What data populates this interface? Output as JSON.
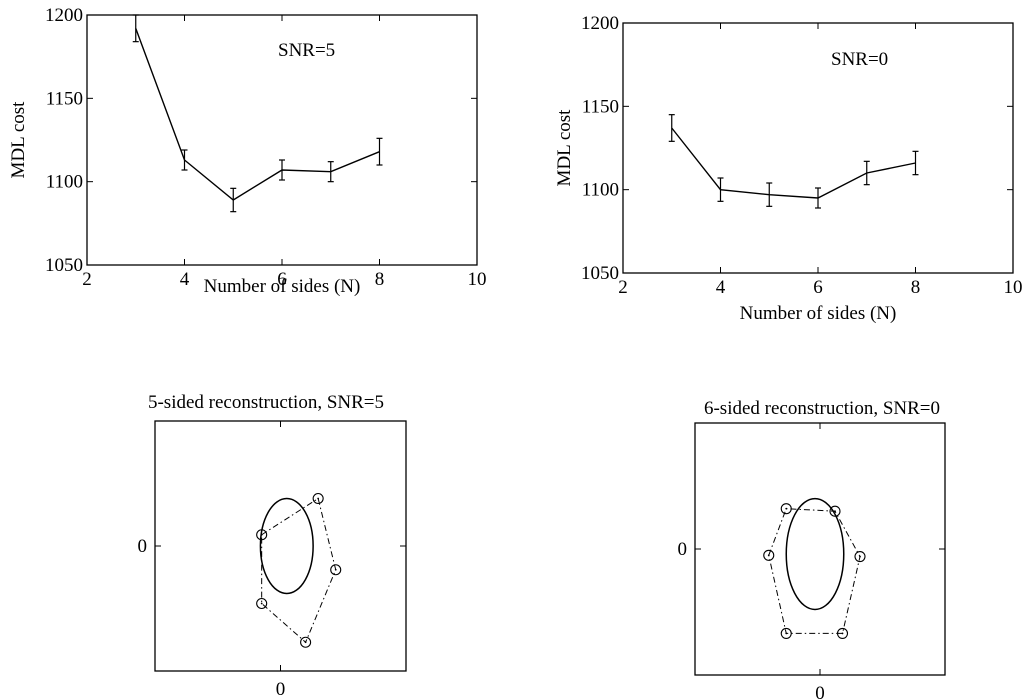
{
  "chart_data": [
    {
      "type": "line",
      "title": "",
      "annotation": "SNR=5",
      "xlabel": "Number of sides (N)",
      "ylabel": "MDL cost",
      "xlim": [
        2,
        10
      ],
      "ylim": [
        1050,
        1200
      ],
      "xticks": [
        "2",
        "4",
        "6",
        "8",
        "10"
      ],
      "yticks": [
        "1050",
        "1100",
        "1150",
        "1200"
      ],
      "x": [
        3,
        4,
        5,
        6,
        7,
        8
      ],
      "y": [
        1192,
        1113,
        1089,
        1107,
        1106,
        1118
      ],
      "err": [
        8,
        6,
        7,
        6,
        6,
        8
      ],
      "grid": false
    },
    {
      "type": "line",
      "title": "",
      "annotation": "SNR=0",
      "xlabel": "Number of sides (N)",
      "ylabel": "MDL cost",
      "xlim": [
        2,
        10
      ],
      "ylim": [
        1050,
        1200
      ],
      "xticks": [
        "2",
        "4",
        "6",
        "8",
        "10"
      ],
      "yticks": [
        "1050",
        "1100",
        "1150",
        "1200"
      ],
      "x": [
        3,
        4,
        5,
        6,
        7,
        8
      ],
      "y": [
        1137,
        1100,
        1097,
        1095,
        1110,
        1116
      ],
      "err": [
        8,
        7,
        7,
        6,
        7,
        7
      ],
      "grid": false
    },
    {
      "type": "scatter",
      "title": "5-sided reconstruction, SNR=5",
      "xtick": "0",
      "ytick": "0",
      "xlim": [
        -1,
        1
      ],
      "ylim": [
        -1,
        1
      ],
      "ellipse": {
        "cx": 0.05,
        "cy": 0.0,
        "rx": 0.21,
        "ry": 0.38
      },
      "points": [
        [
          0.3,
          0.38
        ],
        [
          -0.15,
          0.09
        ],
        [
          0.44,
          -0.19
        ],
        [
          -0.15,
          -0.46
        ],
        [
          0.2,
          -0.77
        ]
      ],
      "grid": false
    },
    {
      "type": "scatter",
      "title": "6-sided reconstruction, SNR=0",
      "xtick": "0",
      "ytick": "0",
      "xlim": [
        -1,
        1
      ],
      "ylim": [
        -1,
        1
      ],
      "ellipse": {
        "cx": -0.04,
        "cy": -0.04,
        "rx": 0.23,
        "ry": 0.44
      },
      "points": [
        [
          -0.27,
          0.32
        ],
        [
          0.12,
          0.3
        ],
        [
          -0.41,
          -0.05
        ],
        [
          0.32,
          -0.06
        ],
        [
          -0.27,
          -0.67
        ],
        [
          0.18,
          -0.67
        ]
      ],
      "grid": false
    }
  ]
}
